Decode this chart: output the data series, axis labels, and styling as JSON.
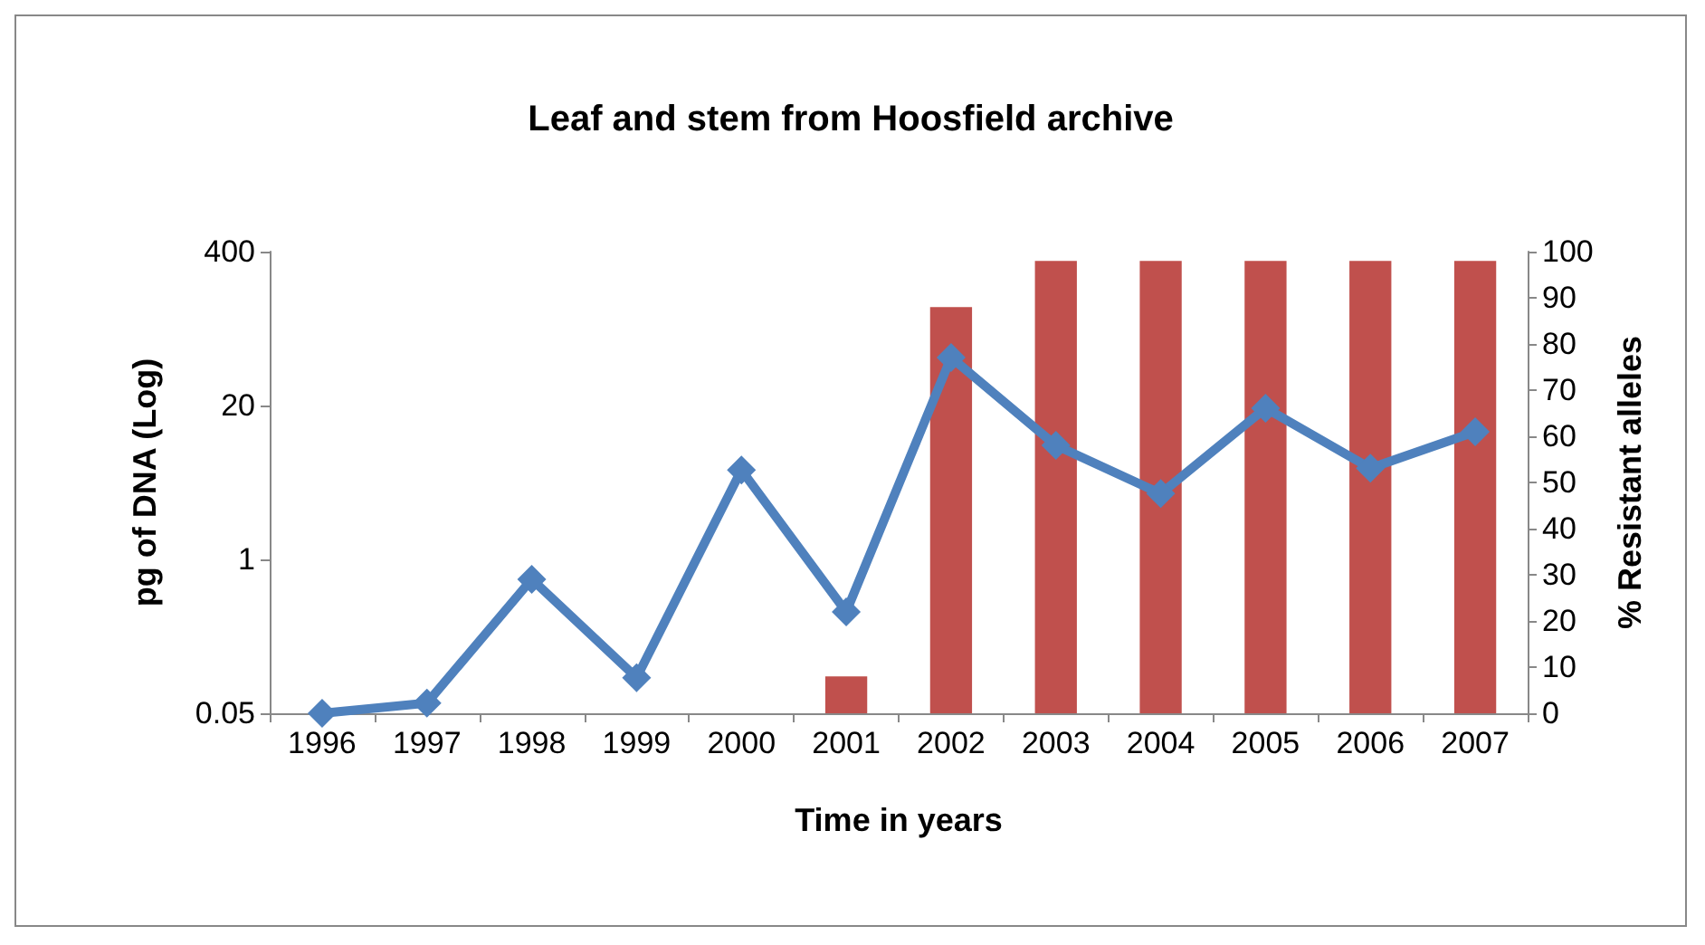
{
  "chart_data": {
    "type": "line",
    "title": "Leaf and stem from Hoosfield archive",
    "xlabel": "Time in years",
    "ylabel": "pg of DNA (Log)",
    "y2label": "% Resistant alleles",
    "categories": [
      "1996",
      "1997",
      "1998",
      "1999",
      "2000",
      "2001",
      "2002",
      "2003",
      "2004",
      "2005",
      "2006",
      "2007"
    ],
    "series": [
      {
        "type": "bar",
        "axis": "y2",
        "color": "#c0504d",
        "values": [
          null,
          null,
          null,
          null,
          null,
          8,
          88,
          98,
          98,
          98,
          98,
          98
        ]
      },
      {
        "color": "#4f81bd",
        "marker": "diamond",
        "values": [
          0.05,
          0.061,
          0.68,
          0.1,
          5.7,
          0.36,
          51,
          9.2,
          3.6,
          19,
          5.9,
          12
        ]
      }
    ],
    "log": "y",
    "ylim": [
      0.05,
      400
    ],
    "yticks": [
      0.05,
      1,
      20,
      400
    ],
    "y2lim": [
      0,
      100
    ],
    "y2ticks": [
      0,
      10,
      20,
      30,
      40,
      50,
      60,
      70,
      80,
      90,
      100
    ],
    "grid": false
  }
}
